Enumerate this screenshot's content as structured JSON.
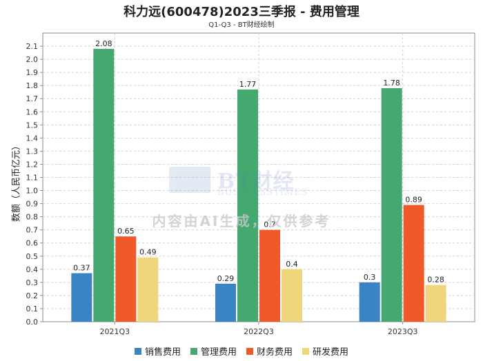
{
  "chart_data": {
    "type": "bar",
    "title": "科力远(600478)2023三季报 - 费用管理",
    "subtitle": "Q1-Q3 - BT财经绘制",
    "ylabel": "数额（人民币亿元）",
    "xlabel": "",
    "ylim": [
      0,
      2.2
    ],
    "yticks": [
      "0.0",
      "0.1",
      "0.2",
      "0.3",
      "0.4",
      "0.5",
      "0.6",
      "0.7",
      "0.8",
      "0.9",
      "1.0",
      "1.1",
      "1.2",
      "1.3",
      "1.4",
      "1.5",
      "1.6",
      "1.7",
      "1.8",
      "1.9",
      "2.0",
      "2.1"
    ],
    "grid": true,
    "legend_position": "bottom",
    "categories": [
      "2021Q3",
      "2022Q3",
      "2023Q3"
    ],
    "series": [
      {
        "name": "销售费用",
        "color": "#3a84c4",
        "values": [
          0.37,
          0.29,
          0.3
        ],
        "labels": [
          "0.37",
          "0.29",
          "0.3"
        ]
      },
      {
        "name": "管理费用",
        "color": "#45a86f",
        "values": [
          2.08,
          1.77,
          1.78
        ],
        "labels": [
          "2.08",
          "1.77",
          "1.78"
        ]
      },
      {
        "name": "财务费用",
        "color": "#f05a28",
        "values": [
          0.65,
          0.7,
          0.89
        ],
        "labels": [
          "0.65",
          "0.7",
          "0.89"
        ]
      },
      {
        "name": "研发费用",
        "color": "#f0d67a",
        "values": [
          0.49,
          0.4,
          0.28
        ],
        "labels": [
          "0.49",
          "0.4",
          "0.28"
        ]
      }
    ]
  },
  "watermark": {
    "logo_main": "BT财经",
    "logo_sub": "BUSINESSTIMES",
    "notice": "内容由AI生成，仅供参考"
  }
}
